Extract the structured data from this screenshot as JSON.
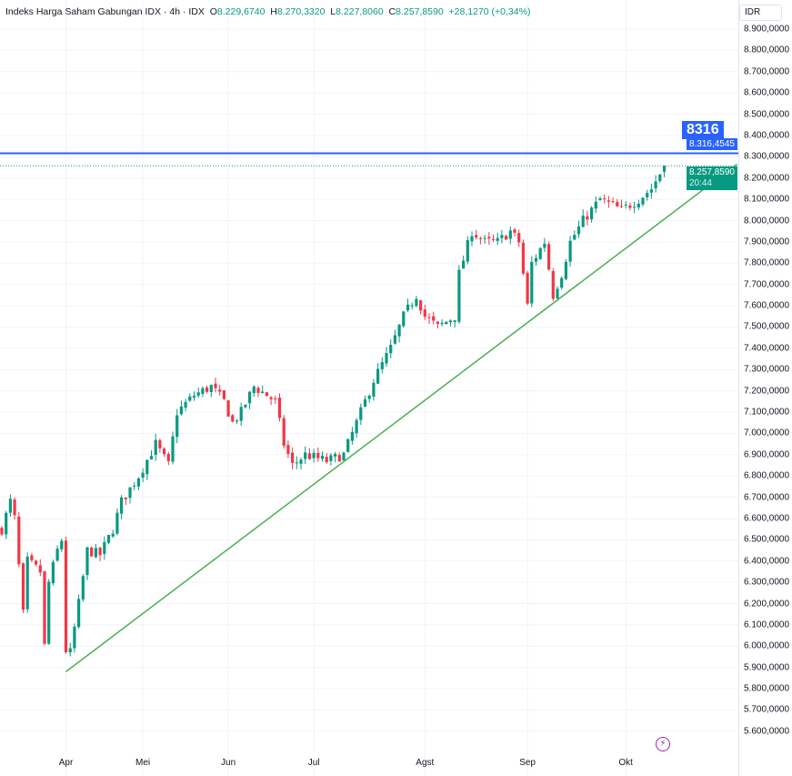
{
  "legend": {
    "title": "Indeks Harga Saham Gabungan IDX · 4h · IDX",
    "o_label": "O",
    "o": "8.229,6740",
    "h_label": "H",
    "h": "8.270,3320",
    "l_label": "L",
    "l": "8.227,8060",
    "c_label": "C",
    "c": "8.257,8590",
    "change": "+28,1270 (+0,34%)"
  },
  "currency": "IDR",
  "alert_label": "8316",
  "alert_price": "8.316,4545",
  "last_price": "8.257,8590",
  "countdown": "20:44",
  "colors": {
    "up": "#089981",
    "down": "#f23645",
    "alert": "#2962ff",
    "trend": "#4caf50",
    "last": "#089981"
  },
  "icons": {
    "bolt": "lightning-icon"
  },
  "chart_data": {
    "type": "candlestick",
    "title": "Indeks Harga Saham Gabungan IDX · 4h · IDX",
    "ylim": [
      5550,
      8960
    ],
    "y_ticks": [
      "8.900,0000",
      "8.800,0000",
      "8.700,0000",
      "8.600,0000",
      "8.500,0000",
      "8.400,0000",
      "8.300,0000",
      "8.200,0000",
      "8.100,0000",
      "8.000,0000",
      "7.900,0000",
      "7.800,0000",
      "7.700,0000",
      "7.600,0000",
      "7.500,0000",
      "7.400,0000",
      "7.300,0000",
      "7.200,0000",
      "7.100,0000",
      "7.000,0000",
      "6.900,0000",
      "6.800,0000",
      "6.700,0000",
      "6.600,0000",
      "6.500,0000",
      "6.400,0000",
      "6.300,0000",
      "6.200,0000",
      "6.100,0000",
      "6.000,0000",
      "5.900,0000",
      "5.800,0000",
      "5.700,0000",
      "5.600,0000"
    ],
    "x_ticks": [
      {
        "label": "Apr",
        "index": 15
      },
      {
        "label": "Mei",
        "index": 33
      },
      {
        "label": "Jun",
        "index": 53
      },
      {
        "label": "Jul",
        "index": 73
      },
      {
        "label": "Agst",
        "index": 99
      },
      {
        "label": "Sep",
        "index": 123
      },
      {
        "label": "Okt",
        "index": 146
      }
    ],
    "close_path": [
      [
        0,
        6550
      ],
      [
        2,
        6680
      ],
      [
        3,
        6600
      ],
      [
        5,
        6150
      ],
      [
        6,
        6400
      ],
      [
        9,
        6350
      ],
      [
        10,
        6000
      ],
      [
        11,
        6300
      ],
      [
        13,
        6450
      ],
      [
        14,
        6500
      ],
      [
        15,
        5980
      ],
      [
        16,
        5970
      ],
      [
        18,
        6200
      ],
      [
        20,
        6450
      ],
      [
        23,
        6430
      ],
      [
        26,
        6550
      ],
      [
        28,
        6680
      ],
      [
        32,
        6800
      ],
      [
        36,
        6950
      ],
      [
        39,
        6850
      ],
      [
        41,
        7100
      ],
      [
        45,
        7180
      ],
      [
        49,
        7220
      ],
      [
        52,
        7150
      ],
      [
        54,
        7050
      ],
      [
        56,
        7100
      ],
      [
        59,
        7220
      ],
      [
        62,
        7180
      ],
      [
        64,
        7150
      ],
      [
        66,
        6950
      ],
      [
        68,
        6850
      ],
      [
        71,
        6900
      ],
      [
        76,
        6870
      ],
      [
        80,
        6900
      ],
      [
        84,
        7100
      ],
      [
        87,
        7250
      ],
      [
        91,
        7400
      ],
      [
        94,
        7550
      ],
      [
        97,
        7650
      ],
      [
        99,
        7550
      ],
      [
        102,
        7500
      ],
      [
        106,
        7550
      ],
      [
        107,
        7750
      ],
      [
        110,
        7950
      ],
      [
        113,
        7900
      ],
      [
        116,
        7900
      ],
      [
        119,
        7950
      ],
      [
        121,
        7900
      ],
      [
        123,
        7600
      ],
      [
        124,
        7800
      ],
      [
        127,
        7900
      ],
      [
        129,
        7650
      ],
      [
        131,
        7750
      ],
      [
        133,
        7900
      ],
      [
        136,
        8000
      ],
      [
        140,
        8100
      ],
      [
        145,
        8050
      ],
      [
        149,
        8100
      ],
      [
        152,
        8150
      ],
      [
        155,
        8258
      ]
    ],
    "trendline": [
      [
        15,
        5880
      ],
      [
        172,
        8265
      ]
    ],
    "alert_level": 8316.4545,
    "last_close": 8257.859
  }
}
